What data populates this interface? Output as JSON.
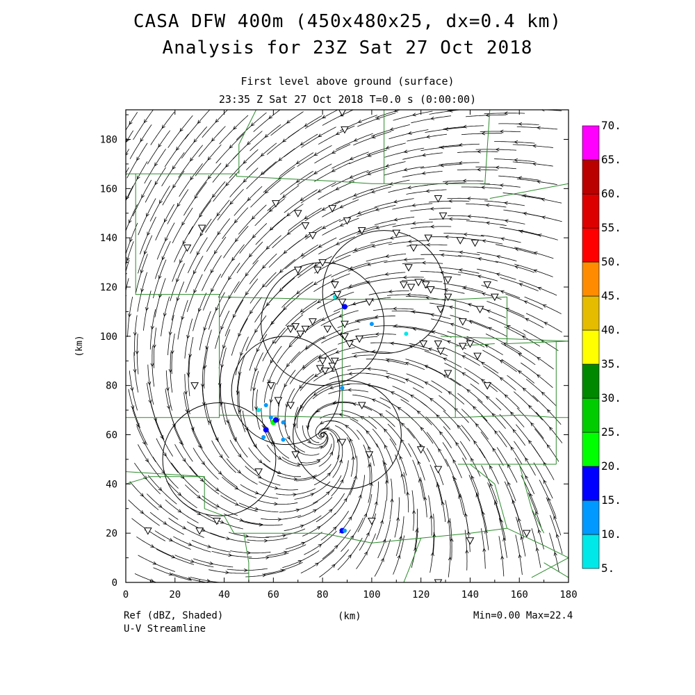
{
  "header": {
    "title": "CASA DFW 400m (450x480x25, dx=0.4 km)",
    "subtitle": "Analysis for 23Z Sat 27 Oct 2018",
    "level": "First level above ground (surface)",
    "time": "23:35 Z Sat 27 Oct 2018    T=0.0 s (0:00:00)"
  },
  "footer": {
    "field": "Ref (dBZ, Shaded)",
    "overlay": "U-V Streamline",
    "xunit": "(km)",
    "minmax": "Min=0.00 Max=22.4"
  },
  "chart_data": {
    "type": "heatmap",
    "title": "CASA DFW 400m (450x480x25, dx=0.4 km)",
    "xlabel": "(km)",
    "ylabel": "(km)",
    "xlim": [
      0,
      180
    ],
    "ylim": [
      0,
      192
    ],
    "xticks": [
      0,
      20,
      40,
      60,
      80,
      100,
      120,
      140,
      160,
      180
    ],
    "yticks": [
      0,
      20,
      40,
      60,
      80,
      100,
      120,
      140,
      160,
      180
    ],
    "field": "Ref (dBZ, Shaded)",
    "overlay": "U-V Streamline",
    "min": 0.0,
    "max": 22.4,
    "colorbar": {
      "levels": [
        "5.",
        "10.",
        "15.",
        "20.",
        "25.",
        "30.",
        "35.",
        "40.",
        "45.",
        "50.",
        "55.",
        "60.",
        "65.",
        "70."
      ],
      "colors": [
        "#00e8e8",
        "#0099ff",
        "#0000ff",
        "#00ff00",
        "#00cc00",
        "#008800",
        "#ffff00",
        "#e5bc00",
        "#ff8c00",
        "#ff0000",
        "#dd0000",
        "#bb0000",
        "#ff00ff"
      ]
    },
    "radar_rings": [
      {
        "cx": 38,
        "cy": 50,
        "r": 23
      },
      {
        "cx": 65,
        "cy": 78,
        "r": 22
      },
      {
        "cx": 90,
        "cy": 60,
        "r": 22
      },
      {
        "cx": 105,
        "cy": 118,
        "r": 25
      },
      {
        "cx": 80,
        "cy": 105,
        "r": 25
      }
    ],
    "echoes": [
      {
        "x": 60,
        "y": 65,
        "dbz": 20
      },
      {
        "x": 61,
        "y": 66,
        "dbz": 15
      },
      {
        "x": 59,
        "y": 67,
        "dbz": 10
      },
      {
        "x": 57,
        "y": 62,
        "dbz": 15
      },
      {
        "x": 56,
        "y": 59,
        "dbz": 10
      },
      {
        "x": 64,
        "y": 58,
        "dbz": 10
      },
      {
        "x": 57,
        "y": 72,
        "dbz": 10
      },
      {
        "x": 54,
        "y": 70,
        "dbz": 5
      },
      {
        "x": 64,
        "y": 65,
        "dbz": 10
      },
      {
        "x": 88,
        "y": 21,
        "dbz": 15
      },
      {
        "x": 89,
        "y": 21,
        "dbz": 10
      },
      {
        "x": 88,
        "y": 79,
        "dbz": 10
      },
      {
        "x": 89,
        "y": 112,
        "dbz": 15
      },
      {
        "x": 100,
        "y": 105,
        "dbz": 10
      },
      {
        "x": 114,
        "y": 101,
        "dbz": 5
      },
      {
        "x": 85,
        "y": 116,
        "dbz": 5
      }
    ],
    "stations": [
      [
        88,
        191
      ],
      [
        89,
        184
      ],
      [
        31,
        144
      ],
      [
        25,
        136
      ],
      [
        61,
        154
      ],
      [
        70,
        150
      ],
      [
        84,
        152
      ],
      [
        90,
        147
      ],
      [
        96,
        143
      ],
      [
        110,
        142
      ],
      [
        117,
        136
      ],
      [
        123,
        140
      ],
      [
        115,
        128
      ],
      [
        127,
        156
      ],
      [
        129,
        149
      ],
      [
        136,
        139
      ],
      [
        142,
        138
      ],
      [
        73,
        145
      ],
      [
        76,
        141
      ],
      [
        70,
        127
      ],
      [
        80,
        130
      ],
      [
        78,
        127
      ],
      [
        85,
        121
      ],
      [
        86,
        117
      ],
      [
        88,
        114
      ],
      [
        99,
        114
      ],
      [
        113,
        121
      ],
      [
        116,
        120
      ],
      [
        119,
        122
      ],
      [
        122,
        121
      ],
      [
        124,
        119
      ],
      [
        131,
        123
      ],
      [
        144,
        111
      ],
      [
        150,
        116
      ],
      [
        147,
        121
      ],
      [
        76,
        106
      ],
      [
        73,
        103
      ],
      [
        69,
        104
      ],
      [
        71,
        101
      ],
      [
        67,
        103
      ],
      [
        82,
        103
      ],
      [
        89,
        105
      ],
      [
        89,
        100
      ],
      [
        91,
        97
      ],
      [
        95,
        99
      ],
      [
        80,
        90
      ],
      [
        79,
        87
      ],
      [
        81,
        86
      ],
      [
        84,
        88
      ],
      [
        85,
        90
      ],
      [
        121,
        97
      ],
      [
        127,
        97
      ],
      [
        128,
        94
      ],
      [
        137,
        96
      ],
      [
        140,
        97
      ],
      [
        143,
        92
      ],
      [
        147,
        80
      ],
      [
        131,
        85
      ],
      [
        59,
        80
      ],
      [
        62,
        74
      ],
      [
        67,
        72
      ],
      [
        96,
        72
      ],
      [
        88,
        57
      ],
      [
        99,
        52
      ],
      [
        120,
        54
      ],
      [
        127,
        46
      ],
      [
        54,
        45
      ],
      [
        69,
        52
      ],
      [
        28,
        80
      ],
      [
        37,
        25
      ],
      [
        30,
        21
      ],
      [
        9,
        21
      ],
      [
        100,
        25
      ],
      [
        140,
        17
      ],
      [
        163,
        20
      ],
      [
        127,
        0
      ],
      [
        137,
        106
      ],
      [
        128,
        111
      ],
      [
        131,
        116
      ]
    ],
    "note": "Surface U-V wind streamlines converge toward a cyclonic center near x=80 km, y=60 km."
  }
}
